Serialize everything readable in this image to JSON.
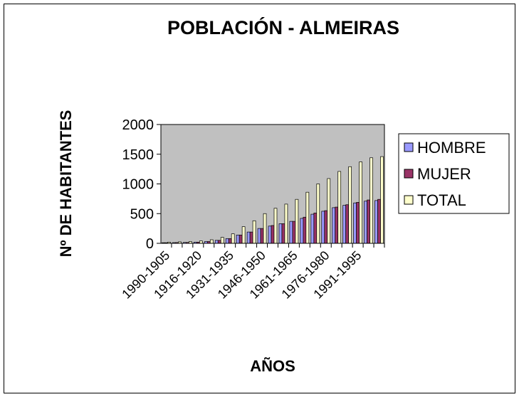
{
  "chart_data": {
    "type": "bar",
    "title": "POBLACIÓN - ALMEIRAS",
    "x_label": "AÑOS",
    "y_label": "Nº DE HABITANTES",
    "categories": [
      "1990-1905",
      null,
      null,
      "1916-1920",
      null,
      null,
      "1931-1935",
      null,
      null,
      "1946-1950",
      null,
      null,
      "1961-1965",
      null,
      null,
      "1976-1980",
      null,
      null,
      "1991-1995",
      null,
      null
    ],
    "series": [
      {
        "name": "HOMBRE",
        "color": "#9999ff",
        "values": [
          10,
          12,
          15,
          20,
          30,
          50,
          80,
          140,
          190,
          250,
          290,
          330,
          370,
          420,
          490,
          540,
          600,
          640,
          680,
          710,
          720
        ]
      },
      {
        "name": "MUJER",
        "color": "#993366",
        "values": [
          10,
          13,
          15,
          20,
          30,
          50,
          80,
          140,
          190,
          250,
          300,
          330,
          370,
          440,
          510,
          550,
          610,
          650,
          690,
          730,
          740
        ]
      },
      {
        "name": "TOTAL",
        "color": "#ffffcc",
        "values": [
          20,
          25,
          30,
          40,
          60,
          100,
          160,
          280,
          380,
          500,
          590,
          660,
          740,
          860,
          1000,
          1090,
          1210,
          1290,
          1370,
          1440,
          1460
        ]
      }
    ],
    "ylim": [
      0,
      2000
    ],
    "yticks": [
      0,
      500,
      1000,
      1500,
      2000
    ],
    "grid": false,
    "legend": "right",
    "plot_background": "#c0c0c0"
  }
}
